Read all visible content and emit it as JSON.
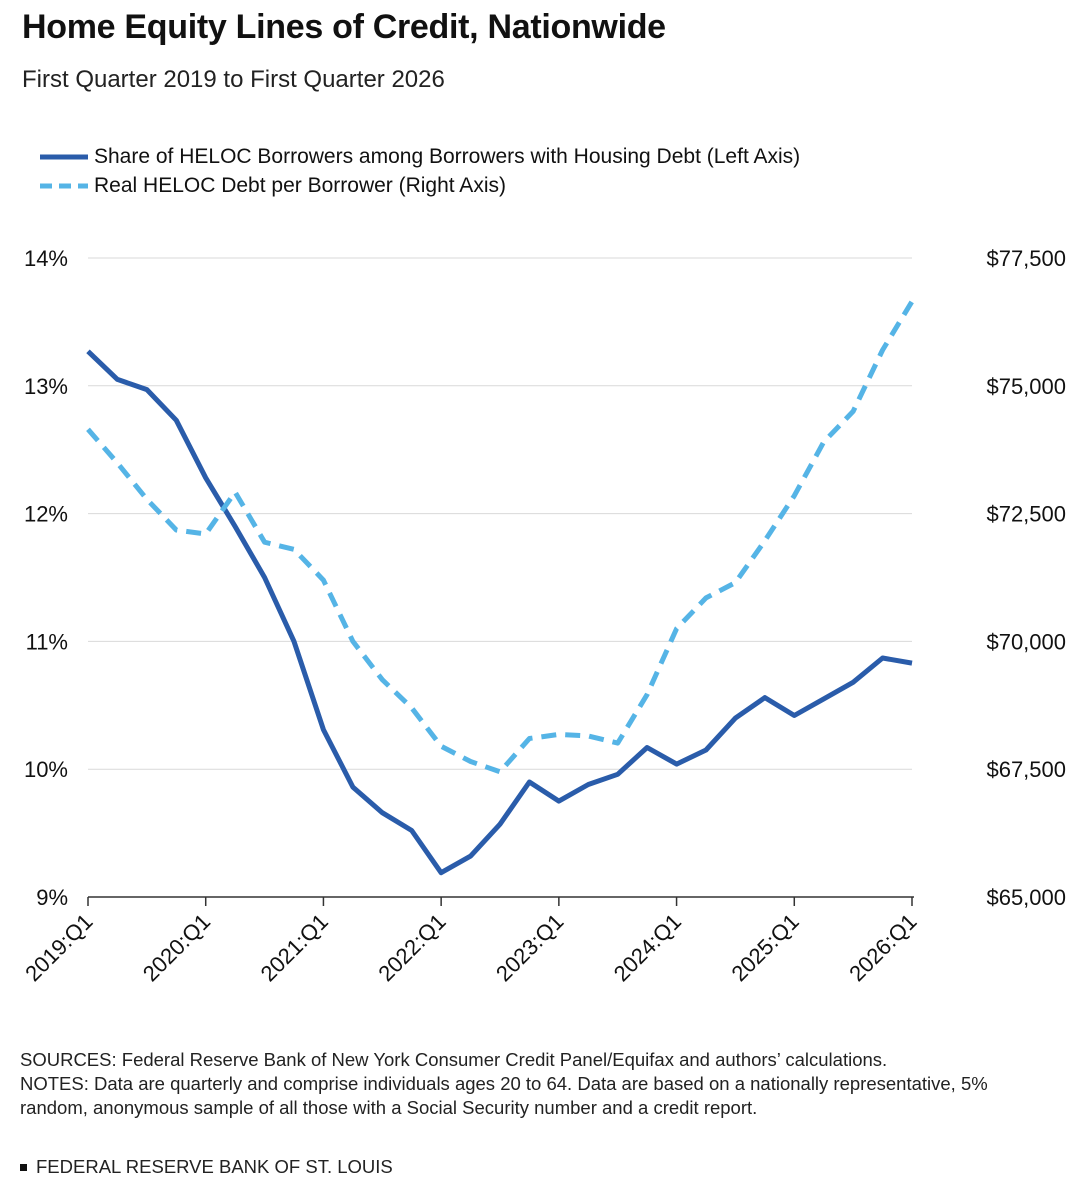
{
  "title": "Home Equity Lines of Credit, Nationwide",
  "subtitle": "First Quarter 2019 to First Quarter 2026",
  "colors": {
    "series_left": "#2a5caa",
    "series_right": "#55b4e6",
    "grid": "#d9d9d9",
    "axis": "#333333"
  },
  "chart_data": {
    "type": "line",
    "legend_placement": "top-left",
    "grid": true,
    "x_tick_labels": [
      "2019:Q1",
      "2020:Q1",
      "2021:Q1",
      "2022:Q1",
      "2023:Q1",
      "2024:Q1",
      "2025:Q1",
      "2026:Q1"
    ],
    "x": [
      "2019:Q1",
      "2019:Q2",
      "2019:Q3",
      "2019:Q4",
      "2020:Q1",
      "2020:Q2",
      "2020:Q3",
      "2020:Q4",
      "2021:Q1",
      "2021:Q2",
      "2021:Q3",
      "2021:Q4",
      "2022:Q1",
      "2022:Q2",
      "2022:Q3",
      "2022:Q4",
      "2023:Q1",
      "2023:Q2",
      "2023:Q3",
      "2023:Q4",
      "2024:Q1",
      "2024:Q2",
      "2024:Q3",
      "2024:Q4",
      "2025:Q1",
      "2025:Q2",
      "2025:Q3",
      "2025:Q4",
      "2026:Q1"
    ],
    "left_axis": {
      "ylim": [
        9,
        14
      ],
      "ticks": [
        9,
        10,
        11,
        12,
        13,
        14
      ],
      "tick_labels": [
        "9%",
        "10%",
        "11%",
        "12%",
        "13%",
        "14%"
      ]
    },
    "right_axis": {
      "ylim": [
        65000,
        77500
      ],
      "ticks": [
        65000,
        67500,
        70000,
        72500,
        75000,
        77500
      ],
      "tick_labels": [
        "$65,000",
        "$67,500",
        "$70,000",
        "$72,500",
        "$75,000",
        "$77,500"
      ]
    },
    "series": [
      {
        "name": "Share of HELOC Borrowers among Borrowers with Housing Debt (Left Axis)",
        "axis": "left",
        "style": "solid",
        "values": [
          13.27,
          13.05,
          12.97,
          12.73,
          12.28,
          11.9,
          11.5,
          11.0,
          10.31,
          9.86,
          9.66,
          9.52,
          9.19,
          9.32,
          9.57,
          9.9,
          9.75,
          9.88,
          9.96,
          10.17,
          10.04,
          10.15,
          10.4,
          10.56,
          10.42,
          10.55,
          10.68,
          10.87,
          10.83
        ]
      },
      {
        "name": "Real HELOC Debt per Borrower (Right Axis)",
        "axis": "right",
        "style": "dashed",
        "values": [
          74150,
          73490,
          72780,
          72180,
          72100,
          72920,
          71940,
          71800,
          71200,
          70000,
          69250,
          68700,
          67950,
          67650,
          67450,
          68100,
          68180,
          68150,
          68010,
          68960,
          70250,
          70850,
          71150,
          71970,
          72850,
          73900,
          74500,
          75700,
          76650
        ]
      }
    ]
  },
  "notes": {
    "sources": "SOURCES: Federal Reserve Bank of New York Consumer Credit Panel/Equifax and authors’ calculations.",
    "notes": "NOTES: Data are quarterly and comprise individuals ages 20 to 64. Data are based on a nationally representative, 5% random, anonymous sample of all those with a Social Security number and a credit report."
  },
  "footer": "FEDERAL RESERVE BANK OF ST. LOUIS"
}
